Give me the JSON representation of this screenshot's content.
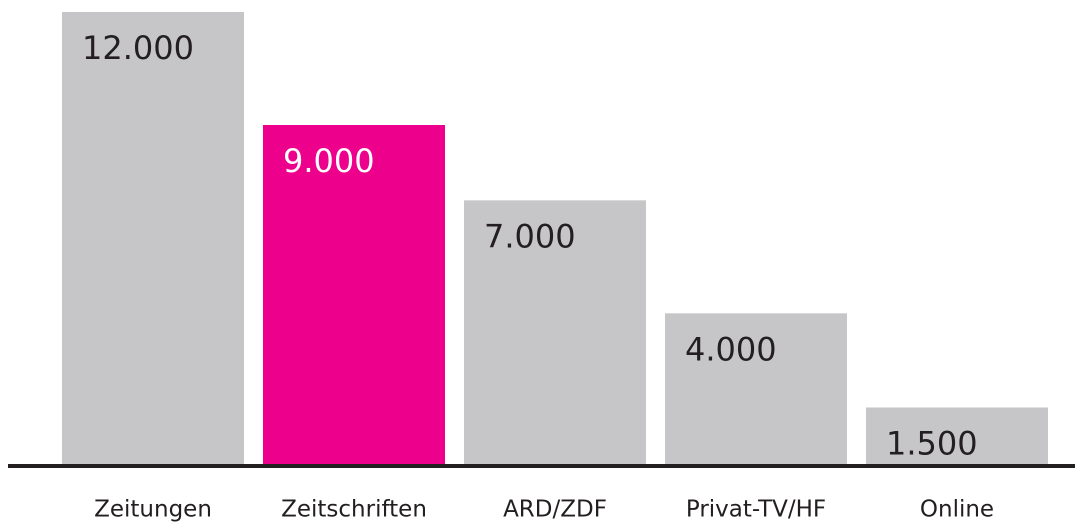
{
  "chart_data": {
    "type": "bar",
    "categories": [
      "Zeitungen",
      "Zeitschriften",
      "ARD/ZDF",
      "Privat-TV/HF",
      "Online"
    ],
    "values": [
      12000,
      9000,
      7000,
      4000,
      1500
    ],
    "value_labels": [
      "12.000",
      "9.000",
      "7.000",
      "4.000",
      "1.500"
    ],
    "colors": [
      "#c6c6c8",
      "#ec008c",
      "#c6c6c8",
      "#c6c6c8",
      "#c6c6c8"
    ],
    "value_label_colors": [
      "#231f20",
      "#ffffff",
      "#231f20",
      "#231f20",
      "#231f20"
    ]
  }
}
